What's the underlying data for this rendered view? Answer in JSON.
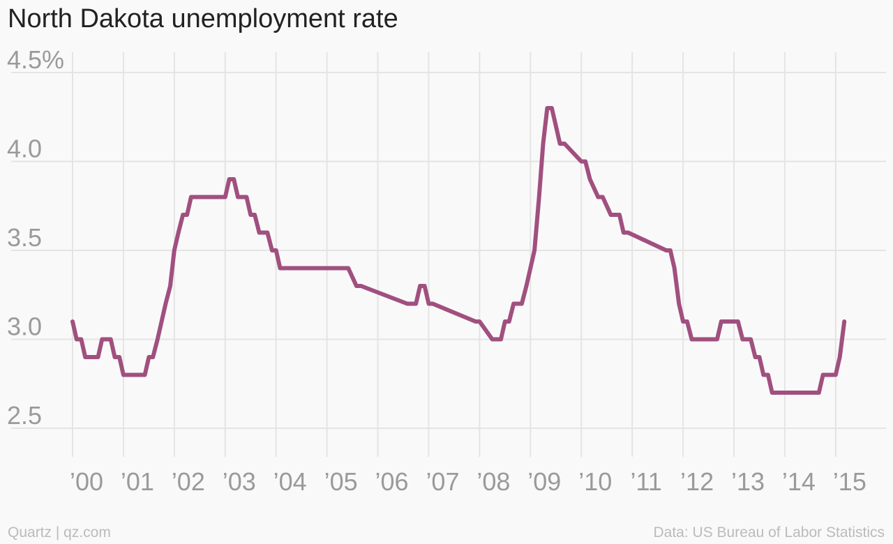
{
  "chart_data": {
    "type": "line",
    "title": "North Dakota unemployment rate",
    "xlabel": "",
    "ylabel": "",
    "ylim": [
      2.5,
      4.5
    ],
    "xlim": [
      2000,
      2015.25
    ],
    "y_ticks": [
      {
        "value": 4.5,
        "label": "4.5%"
      },
      {
        "value": 4.0,
        "label": "4.0"
      },
      {
        "value": 3.5,
        "label": "3.5"
      },
      {
        "value": 3.0,
        "label": "3.0"
      },
      {
        "value": 2.5,
        "label": "2.5"
      }
    ],
    "x_ticks": [
      {
        "value": 2000,
        "label": "’00"
      },
      {
        "value": 2001,
        "label": "’01"
      },
      {
        "value": 2002,
        "label": "’02"
      },
      {
        "value": 2003,
        "label": "’03"
      },
      {
        "value": 2004,
        "label": "’04"
      },
      {
        "value": 2005,
        "label": "’05"
      },
      {
        "value": 2006,
        "label": "’06"
      },
      {
        "value": 2007,
        "label": "’07"
      },
      {
        "value": 2008,
        "label": "’08"
      },
      {
        "value": 2009,
        "label": "’09"
      },
      {
        "value": 2010,
        "label": "’10"
      },
      {
        "value": 2011,
        "label": "’11"
      },
      {
        "value": 2012,
        "label": "’12"
      },
      {
        "value": 2013,
        "label": "’13"
      },
      {
        "value": 2014,
        "label": "’14"
      },
      {
        "value": 2015,
        "label": "’15"
      }
    ],
    "grid": true,
    "legend": "none",
    "line_color": "#a0507f",
    "series": [
      {
        "x": [
          2000.0,
          2000.08,
          2000.17,
          2000.25,
          2000.5,
          2000.58,
          2000.75,
          2000.83,
          2000.92,
          2001.0,
          2001.42,
          2001.5,
          2001.58,
          2001.67,
          2001.75,
          2001.83,
          2001.92,
          2002.0,
          2002.08,
          2002.17,
          2002.25,
          2002.33,
          2002.42,
          2003.0,
          2003.08,
          2003.17,
          2003.25,
          2003.42,
          2003.5,
          2003.58,
          2003.67,
          2003.83,
          2003.92,
          2004.0,
          2004.08,
          2005.33,
          2005.42,
          2005.58,
          2005.67,
          2006.58,
          2006.67,
          2006.75,
          2006.83,
          2006.92,
          2007.0,
          2007.08,
          2007.92,
          2008.0,
          2008.25,
          2008.33,
          2008.42,
          2008.5,
          2008.58,
          2008.67,
          2008.83,
          2008.92,
          2009.0,
          2009.08,
          2009.17,
          2009.25,
          2009.33,
          2009.42,
          2009.5,
          2009.58,
          2009.67,
          2010.0,
          2010.08,
          2010.17,
          2010.33,
          2010.42,
          2010.58,
          2010.67,
          2010.75,
          2010.83,
          2010.92,
          2011.67,
          2011.75,
          2011.83,
          2011.92,
          2012.0,
          2012.08,
          2012.17,
          2012.67,
          2012.75,
          2012.83,
          2013.08,
          2013.17,
          2013.33,
          2013.42,
          2013.5,
          2013.58,
          2013.67,
          2013.75,
          2014.67,
          2014.75,
          2014.83,
          2015.0,
          2015.08,
          2015.17
        ],
        "values": [
          3.1,
          3.0,
          3.0,
          2.9,
          2.9,
          3.0,
          3.0,
          2.9,
          2.9,
          2.8,
          2.8,
          2.9,
          2.9,
          3.0,
          3.1,
          3.2,
          3.3,
          3.5,
          3.6,
          3.7,
          3.7,
          3.8,
          3.8,
          3.8,
          3.9,
          3.9,
          3.8,
          3.8,
          3.7,
          3.7,
          3.6,
          3.6,
          3.5,
          3.5,
          3.4,
          3.4,
          3.4,
          3.3,
          3.3,
          3.2,
          3.2,
          3.2,
          3.3,
          3.3,
          3.2,
          3.2,
          3.1,
          3.1,
          3.0,
          3.0,
          3.0,
          3.1,
          3.1,
          3.2,
          3.2,
          3.3,
          3.4,
          3.5,
          3.8,
          4.1,
          4.3,
          4.3,
          4.2,
          4.1,
          4.1,
          4.0,
          4.0,
          3.9,
          3.8,
          3.8,
          3.7,
          3.7,
          3.7,
          3.6,
          3.6,
          3.5,
          3.5,
          3.4,
          3.2,
          3.1,
          3.1,
          3.0,
          3.0,
          3.1,
          3.1,
          3.1,
          3.0,
          3.0,
          2.9,
          2.9,
          2.8,
          2.8,
          2.7,
          2.7,
          2.8,
          2.8,
          2.8,
          2.9,
          3.1
        ]
      }
    ]
  },
  "footer": {
    "source_left": "Quartz | qz.com",
    "source_right": "Data: US Bureau of Labor Statistics"
  }
}
